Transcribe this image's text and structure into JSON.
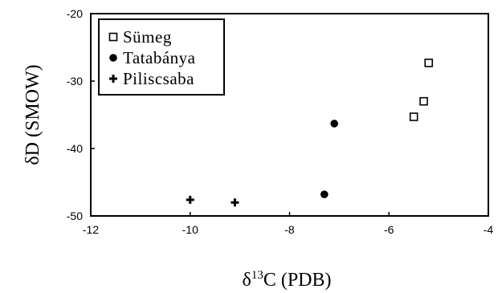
{
  "chart_data": {
    "type": "scatter",
    "title": "",
    "xlabel": {
      "prefix": "δ",
      "sup": "13",
      "rest": "C (PDB)"
    },
    "ylabel": "δD (SMOW)",
    "xlim": [
      -12,
      -4
    ],
    "ylim": [
      -50,
      -20
    ],
    "xticks": [
      -12,
      -10,
      -8,
      -6,
      -4
    ],
    "yticks": [
      -50,
      -40,
      -30,
      -20
    ],
    "grid": false,
    "legend_position": "top-left",
    "series": [
      {
        "name": "Sümeg",
        "marker": "open-square",
        "points": [
          {
            "x": -5.5,
            "y": -35.3
          },
          {
            "x": -5.3,
            "y": -33.0
          },
          {
            "x": -5.2,
            "y": -27.3
          }
        ]
      },
      {
        "name": "Tatabánya",
        "marker": "filled-circle",
        "points": [
          {
            "x": -7.1,
            "y": -36.3
          },
          {
            "x": -7.3,
            "y": -46.8
          }
        ]
      },
      {
        "name": "Piliscsaba",
        "marker": "plus",
        "points": [
          {
            "x": -10.0,
            "y": -47.6
          },
          {
            "x": -9.1,
            "y": -48.0
          }
        ]
      }
    ]
  }
}
